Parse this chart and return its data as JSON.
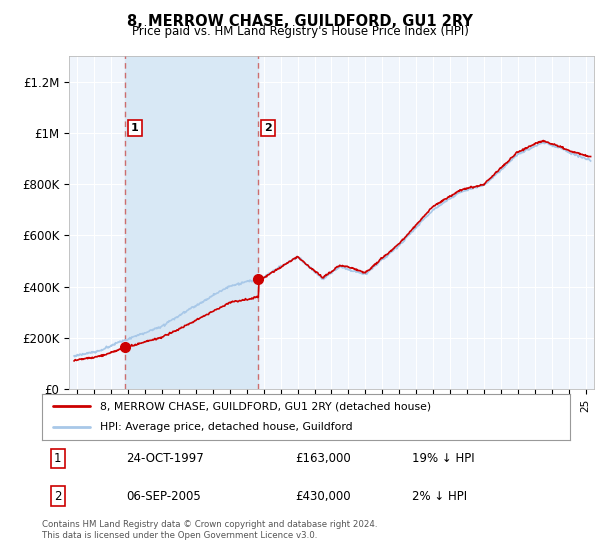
{
  "title": "8, MERROW CHASE, GUILDFORD, GU1 2RY",
  "subtitle": "Price paid vs. HM Land Registry's House Price Index (HPI)",
  "purchase1_date": 1997.82,
  "purchase1_price": 163000,
  "purchase2_date": 2005.68,
  "purchase2_price": 430000,
  "hpi_color": "#a8c8e8",
  "price_color": "#cc0000",
  "dashed_color": "#cc6666",
  "marker_color": "#cc0000",
  "background_plot": "#f0f5fc",
  "shaded_color": "#d8e8f5",
  "grid_color": "#ffffff",
  "legend_label1": "8, MERROW CHASE, GUILDFORD, GU1 2RY (detached house)",
  "legend_label2": "HPI: Average price, detached house, Guildford",
  "annotation1_date": "24-OCT-1997",
  "annotation1_price": "£163,000",
  "annotation1_hpi": "19% ↓ HPI",
  "annotation2_date": "06-SEP-2005",
  "annotation2_price": "£430,000",
  "annotation2_hpi": "2% ↓ HPI",
  "footer": "Contains HM Land Registry data © Crown copyright and database right 2024.\nThis data is licensed under the Open Government Licence v3.0.",
  "ylim": [
    0,
    1300000
  ],
  "xlim_start": 1994.5,
  "xlim_end": 2025.5,
  "yticks": [
    0,
    200000,
    400000,
    600000,
    800000,
    1000000,
    1200000
  ],
  "ytick_labels": [
    "£0",
    "£200K",
    "£400K",
    "£600K",
    "£800K",
    "£1M",
    "£1.2M"
  ]
}
